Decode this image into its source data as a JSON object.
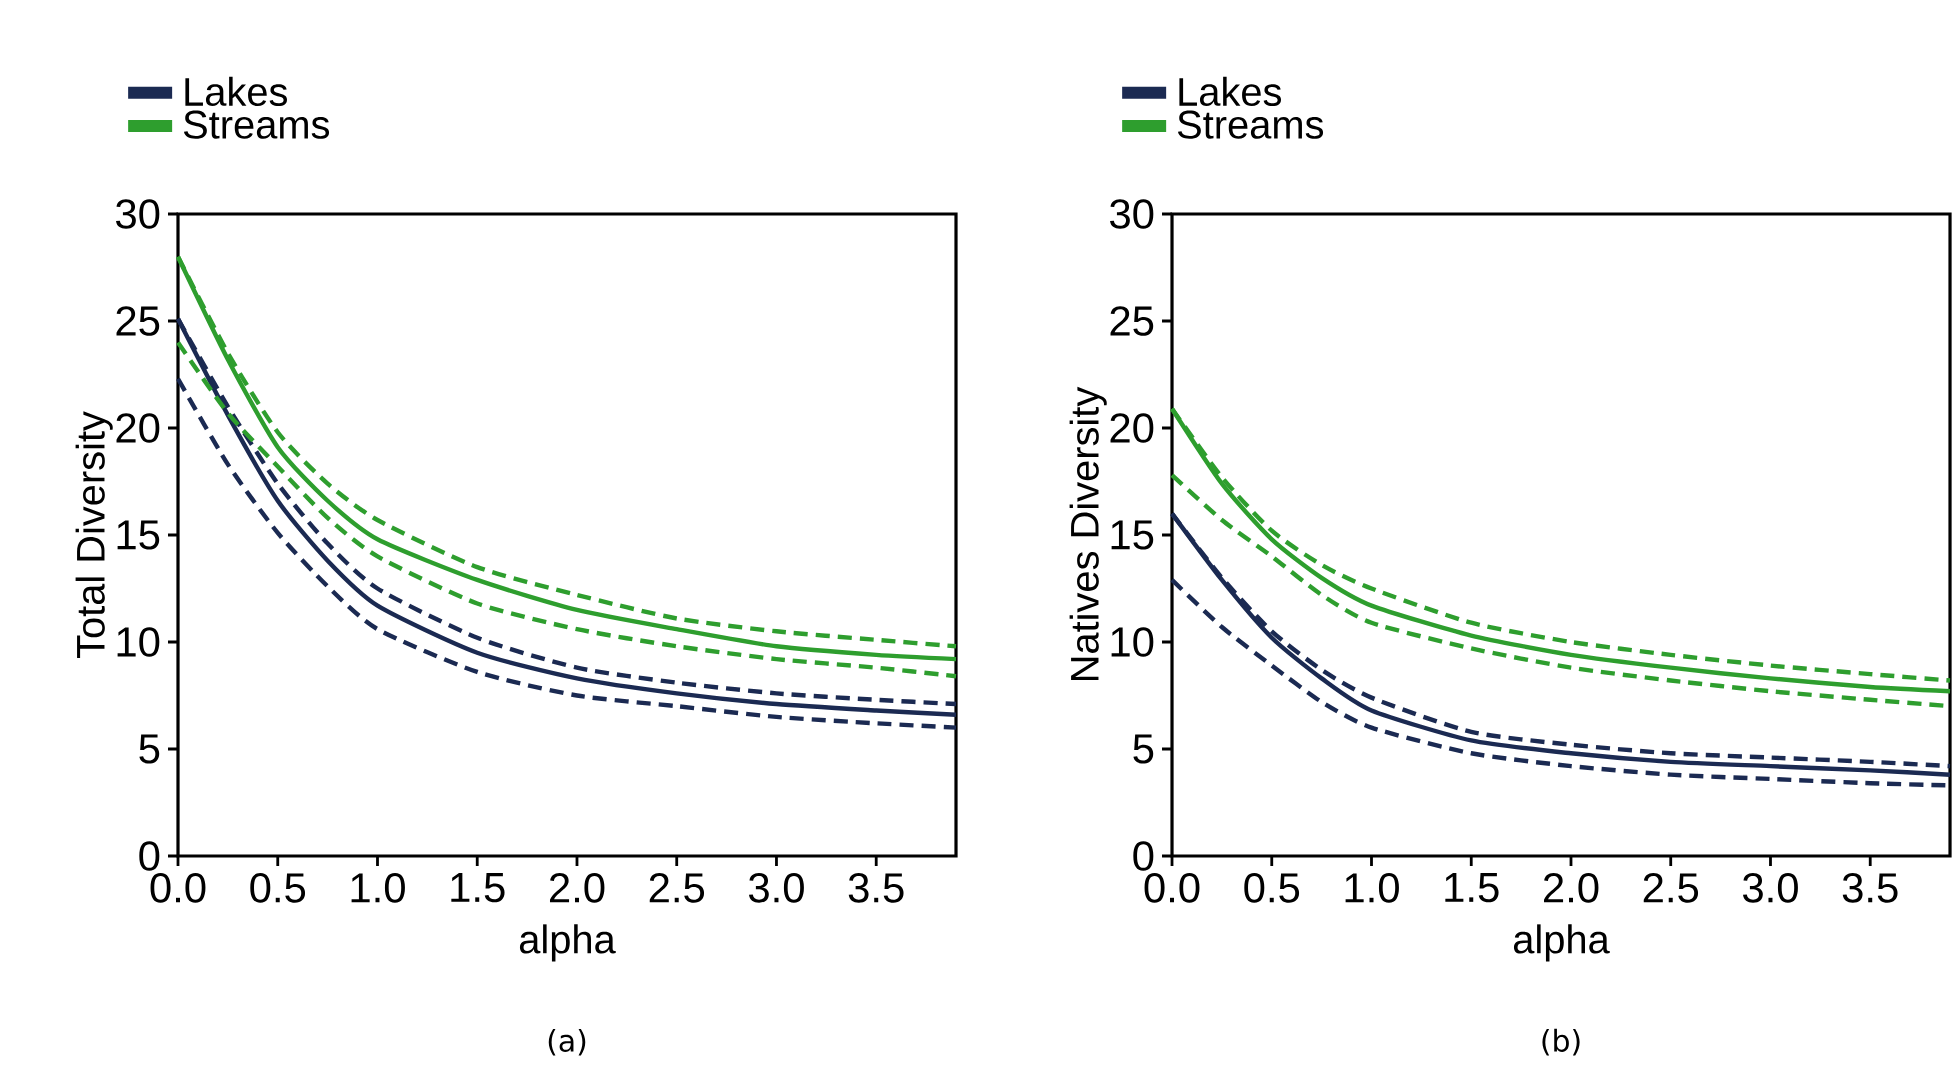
{
  "chart_data": [
    {
      "type": "line",
      "xlabel": "alpha",
      "ylabel": "Total Diversity",
      "annotations": [
        "(a)"
      ],
      "legend": "top left",
      "x": [
        0,
        0.25,
        0.5,
        0.75,
        1,
        1.5,
        2,
        2.5,
        3,
        3.5,
        3.9
      ],
      "xlim": [
        0,
        3.9
      ],
      "xticks": [
        {
          "value": 0,
          "label": "0.0"
        },
        0.5,
        {
          "value": 1,
          "label": "1.0"
        },
        1.5,
        {
          "value": 2,
          "label": "2.0"
        },
        2.5,
        {
          "value": 3,
          "label": "3.0"
        },
        3.5
      ],
      "ylim": [
        0,
        30
      ],
      "yticks": [
        0,
        5,
        10,
        15,
        20,
        25,
        30
      ],
      "series": [
        {
          "name": "Lakes",
          "color": "#1b2a52",
          "line_style": "solid",
          "values": [
            25.1,
            20.6,
            16.6,
            13.8,
            11.7,
            9.5,
            8.3,
            7.6,
            7.1,
            6.8,
            6.6
          ]
        },
        {
          "color": "#1b2a52",
          "line_style": "dashed",
          "values": [
            25.1,
            21.0,
            17.4,
            14.6,
            12.5,
            10.2,
            8.8,
            8.1,
            7.6,
            7.3,
            7.1
          ]
        },
        {
          "color": "#1b2a52",
          "line_style": "dashed",
          "values": [
            22.3,
            18.3,
            15.1,
            12.6,
            10.6,
            8.6,
            7.5,
            7.0,
            6.5,
            6.2,
            6.0
          ]
        },
        {
          "name": "Streams",
          "color": "#2e9e2e",
          "line_style": "solid",
          "values": [
            28.0,
            23.2,
            19.1,
            16.6,
            14.8,
            12.9,
            11.5,
            10.6,
            9.8,
            9.4,
            9.2
          ]
        },
        {
          "color": "#2e9e2e",
          "line_style": "dashed",
          "values": [
            28.0,
            23.5,
            19.8,
            17.4,
            15.7,
            13.5,
            12.2,
            11.1,
            10.5,
            10.1,
            9.8
          ]
        },
        {
          "color": "#2e9e2e",
          "line_style": "dashed",
          "values": [
            24.0,
            20.7,
            18.2,
            15.8,
            14.0,
            11.8,
            10.6,
            9.8,
            9.2,
            8.8,
            8.4
          ]
        }
      ]
    },
    {
      "type": "line",
      "xlabel": "alpha",
      "ylabel": "Natives Diversity",
      "annotations": [
        "(b)"
      ],
      "legend": "top left",
      "x": [
        0,
        0.25,
        0.5,
        0.75,
        1,
        1.5,
        2,
        2.5,
        3,
        3.5,
        3.9
      ],
      "xlim": [
        0,
        3.9
      ],
      "xticks": [
        {
          "value": 0,
          "label": "0.0"
        },
        0.5,
        {
          "value": 1,
          "label": "1.0"
        },
        1.5,
        {
          "value": 2,
          "label": "2.0"
        },
        2.5,
        {
          "value": 3,
          "label": "3.0"
        },
        3.5
      ],
      "ylim": [
        0,
        30
      ],
      "yticks": [
        0,
        5,
        10,
        15,
        20,
        25,
        30
      ],
      "series": [
        {
          "name": "Lakes",
          "color": "#1b2a52",
          "line_style": "solid",
          "values": [
            16.0,
            12.9,
            10.2,
            8.3,
            6.8,
            5.4,
            4.8,
            4.4,
            4.2,
            4.0,
            3.8
          ]
        },
        {
          "color": "#1b2a52",
          "line_style": "dashed",
          "values": [
            16.0,
            13.0,
            10.5,
            8.7,
            7.4,
            5.8,
            5.2,
            4.8,
            4.6,
            4.4,
            4.2
          ]
        },
        {
          "color": "#1b2a52",
          "line_style": "dashed",
          "values": [
            12.9,
            10.7,
            8.9,
            7.2,
            6.0,
            4.8,
            4.2,
            3.8,
            3.6,
            3.4,
            3.3
          ]
        },
        {
          "name": "Streams",
          "color": "#2e9e2e",
          "line_style": "solid",
          "values": [
            20.9,
            17.4,
            14.8,
            13.0,
            11.7,
            10.3,
            9.4,
            8.8,
            8.3,
            7.9,
            7.7
          ]
        },
        {
          "color": "#2e9e2e",
          "line_style": "dashed",
          "values": [
            20.9,
            17.7,
            15.2,
            13.6,
            12.5,
            10.9,
            10.0,
            9.4,
            8.9,
            8.5,
            8.2
          ]
        },
        {
          "color": "#2e9e2e",
          "line_style": "dashed",
          "values": [
            17.8,
            15.7,
            14.0,
            12.2,
            10.9,
            9.7,
            8.8,
            8.2,
            7.7,
            7.3,
            7.0
          ]
        }
      ]
    }
  ]
}
